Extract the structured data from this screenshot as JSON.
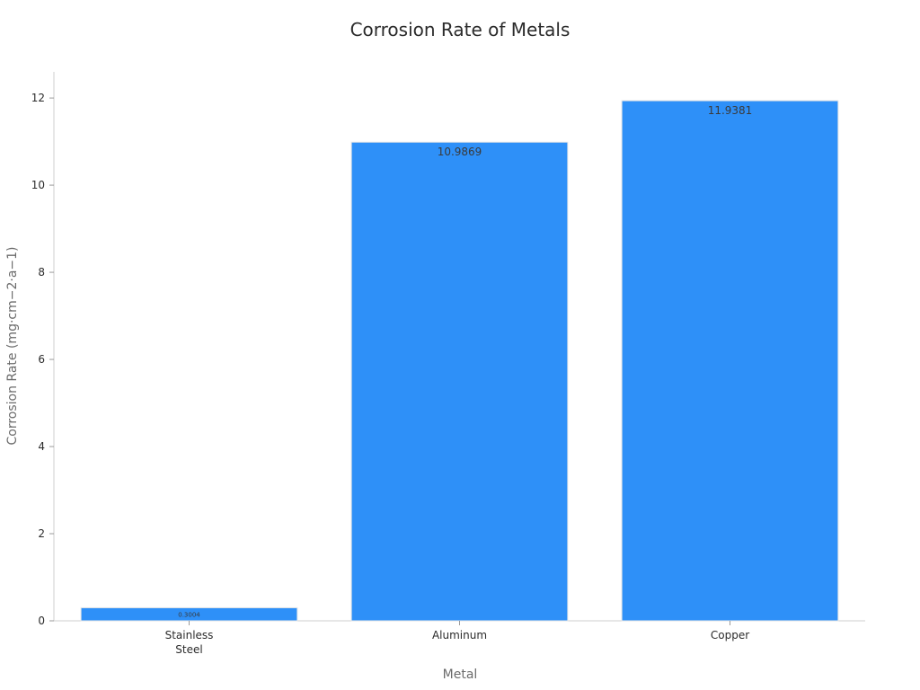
{
  "chart_data": {
    "type": "bar",
    "title": "Corrosion Rate of Metals",
    "xlabel": "Metal",
    "ylabel": "Corrosion Rate (mg·cm−2·a−1)",
    "categories": [
      [
        "Stainless",
        "Steel"
      ],
      [
        "Aluminum"
      ],
      [
        "Copper"
      ]
    ],
    "values": [
      0.3004,
      10.9869,
      11.9381
    ],
    "value_labels": [
      "0.3004",
      "10.9869",
      "11.9381"
    ],
    "ylim": [
      0,
      12.6
    ],
    "yticks": [
      "0",
      "2",
      "4",
      "6",
      "8",
      "10",
      "12"
    ],
    "bar_color": "#2e90f8",
    "grid": false,
    "legend": "none"
  }
}
